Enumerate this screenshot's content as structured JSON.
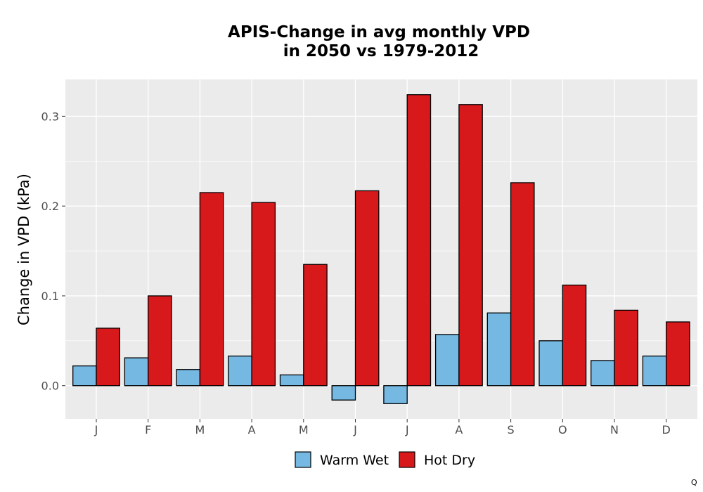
{
  "chart_data": {
    "type": "bar",
    "title_line1": "APIS-Change in avg monthly VPD",
    "title_line2": "in 2050 vs 1979-2012",
    "xlabel": "",
    "ylabel": "Change in VPD (kPa)",
    "categories": [
      "J",
      "F",
      "M",
      "A",
      "M",
      "J",
      "J",
      "A",
      "S",
      "O",
      "N",
      "D"
    ],
    "series": [
      {
        "name": "Warm Wet",
        "color": "#75b8e2",
        "values": [
          0.022,
          0.031,
          0.018,
          0.033,
          0.012,
          -0.016,
          -0.02,
          0.057,
          0.081,
          0.05,
          0.028,
          0.033
        ]
      },
      {
        "name": "Hot Dry",
        "color": "#d7191c",
        "values": [
          0.064,
          0.1,
          0.215,
          0.204,
          0.135,
          0.217,
          0.324,
          0.313,
          0.226,
          0.112,
          0.084,
          0.071
        ]
      }
    ],
    "ylim": [
      -0.037,
      0.341
    ],
    "yticks": [
      0.0,
      0.1,
      0.2,
      0.3
    ],
    "ytick_labels": [
      "0.0",
      "0.1",
      "0.2",
      "0.3"
    ],
    "grid": true,
    "legend_position": "bottom",
    "panel_background": "#ebebeb",
    "corner_note": "Q"
  }
}
